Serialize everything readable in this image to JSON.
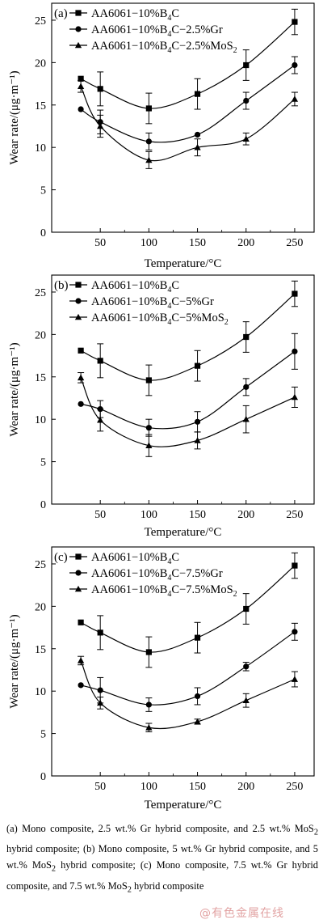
{
  "chart_data": [
    {
      "type": "line",
      "panel_label": "(a)",
      "xlabel": "Temperature/°C",
      "ylabel": "Wear rate/(μg·m⁻¹)",
      "xlim": [
        0,
        270
      ],
      "ylim": [
        0,
        27
      ],
      "xticks": [
        50,
        100,
        150,
        200,
        250
      ],
      "yticks": [
        0,
        5,
        10,
        15,
        20,
        25
      ],
      "x": [
        30,
        50,
        100,
        150,
        200,
        250
      ],
      "series": [
        {
          "name_parts": [
            "AA6061−10%B",
            "4",
            "C"
          ],
          "marker": "square",
          "values": [
            18.1,
            16.9,
            14.6,
            16.3,
            19.7,
            24.8
          ],
          "errors": [
            0,
            2.0,
            1.8,
            1.8,
            1.8,
            1.5
          ]
        },
        {
          "name_parts": [
            "AA6061−10%B",
            "4",
            "C−2.5%Gr"
          ],
          "marker": "circle",
          "values": [
            14.5,
            13.0,
            10.7,
            11.5,
            15.5,
            19.7
          ],
          "errors": [
            0,
            1.4,
            1.0,
            0,
            1.0,
            1.0
          ]
        },
        {
          "name_parts": [
            "AA6061−10%B",
            "4",
            "C−2.5%MoS",
            "2",
            ""
          ],
          "marker": "triangle",
          "values": [
            17.2,
            12.5,
            8.5,
            10.0,
            11.0,
            15.7
          ],
          "errors": [
            0.7,
            1.3,
            1.0,
            1.0,
            0.7,
            0.8
          ]
        }
      ]
    },
    {
      "type": "line",
      "panel_label": "(b)",
      "xlabel": "Temperature/°C",
      "ylabel": "Wear rate/(μg·m⁻¹)",
      "xlim": [
        0,
        270
      ],
      "ylim": [
        0,
        27
      ],
      "xticks": [
        50,
        100,
        150,
        200,
        250
      ],
      "yticks": [
        0,
        5,
        10,
        15,
        20,
        25
      ],
      "x": [
        30,
        50,
        100,
        150,
        200,
        250
      ],
      "series": [
        {
          "name_parts": [
            "AA6061−10%B",
            "4",
            "C"
          ],
          "marker": "square",
          "values": [
            18.1,
            16.9,
            14.6,
            16.3,
            19.7,
            24.8
          ],
          "errors": [
            0,
            2.0,
            1.8,
            1.8,
            1.8,
            1.5
          ]
        },
        {
          "name_parts": [
            "AA6061−10%B",
            "4",
            "C−5%Gr"
          ],
          "marker": "circle",
          "values": [
            11.8,
            11.2,
            9.0,
            9.7,
            13.8,
            18.0
          ],
          "errors": [
            0,
            1.0,
            1.0,
            1.2,
            1.0,
            2.1
          ]
        },
        {
          "name_parts": [
            "AA6061−10%B",
            "4",
            "C−5%MoS",
            "2",
            ""
          ],
          "marker": "triangle",
          "values": [
            14.9,
            9.9,
            6.9,
            7.5,
            10.0,
            12.6
          ],
          "errors": [
            0.6,
            1.3,
            1.3,
            1.0,
            1.6,
            1.2
          ]
        }
      ]
    },
    {
      "type": "line",
      "panel_label": "(c)",
      "xlabel": "Temperature/°C",
      "ylabel": "Wear rate/(μg·m⁻¹)",
      "xlim": [
        0,
        270
      ],
      "ylim": [
        0,
        27
      ],
      "xticks": [
        50,
        100,
        150,
        200,
        250
      ],
      "yticks": [
        0,
        5,
        10,
        15,
        20,
        25
      ],
      "x": [
        30,
        50,
        100,
        150,
        200,
        250
      ],
      "series": [
        {
          "name_parts": [
            "AA6061−10%B",
            "4",
            "C"
          ],
          "marker": "square",
          "values": [
            18.1,
            16.9,
            14.6,
            16.3,
            19.7,
            24.8
          ],
          "errors": [
            0,
            2.0,
            1.8,
            1.8,
            1.8,
            1.5
          ]
        },
        {
          "name_parts": [
            "AA6061−10%B",
            "4",
            "C−7.5%Gr"
          ],
          "marker": "circle",
          "values": [
            10.7,
            10.1,
            8.4,
            9.4,
            12.9,
            17.0
          ],
          "errors": [
            0,
            1.5,
            0.8,
            1.0,
            0.5,
            1.0
          ]
        },
        {
          "name_parts": [
            "AA6061−10%B",
            "4",
            "C−7.5%MoS",
            "2",
            ""
          ],
          "marker": "triangle",
          "values": [
            13.6,
            8.6,
            5.7,
            6.4,
            8.9,
            11.4
          ],
          "errors": [
            0.5,
            0.7,
            0.5,
            0.3,
            0.8,
            0.9
          ]
        }
      ]
    }
  ],
  "caption": {
    "parts": [
      "(a) Mono composite, 2.5 wt.% Gr hybrid composite, and 2.5 wt.% MoS",
      "2",
      " hybrid composite; (b) Mono composite, 5 wt.% Gr hybrid composite, and 5 wt.% MoS",
      "2",
      " hybrid composite; (c) Mono composite, 7.5 wt.% Gr hybrid composite, and 7.5 wt.% MoS",
      "2",
      " hybrid composite"
    ]
  },
  "watermark": "@有色金属在线"
}
